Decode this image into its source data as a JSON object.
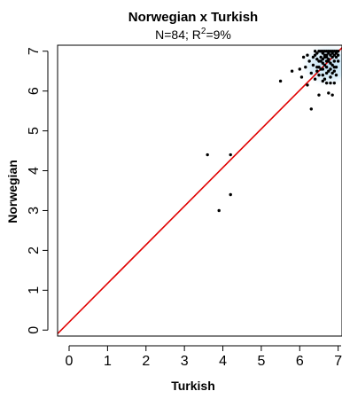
{
  "chart_data": {
    "type": "scatter",
    "title": "Norwegian x Turkish",
    "subtitle": {
      "prefix": "N=84; R",
      "sup": "2",
      "suffix": "=9%"
    },
    "xlabel": "Turkish",
    "ylabel": "Norwegian",
    "xlim": [
      -0.3,
      7.1
    ],
    "ylim": [
      -0.15,
      7.15
    ],
    "x_ticks": [
      0,
      1,
      2,
      3,
      4,
      5,
      6,
      7
    ],
    "y_ticks": [
      0,
      1,
      2,
      3,
      4,
      5,
      6,
      7
    ],
    "x_tick_labels": [
      "0",
      "1",
      "2",
      "3",
      "4",
      "5",
      "6",
      "7"
    ],
    "y_tick_labels": [
      "0",
      "1",
      "2",
      "3",
      "4",
      "5",
      "6",
      "7"
    ],
    "fit_line": {
      "intercept": 0.2,
      "slope": 0.97,
      "color": "#e00000"
    },
    "point_color": "#000000",
    "density_color": "#cfe8f6",
    "points": [
      [
        3.6,
        4.4
      ],
      [
        4.2,
        4.4
      ],
      [
        4.2,
        3.4
      ],
      [
        3.9,
        3.0
      ],
      [
        5.5,
        6.25
      ],
      [
        5.8,
        6.5
      ],
      [
        6.0,
        6.55
      ],
      [
        6.1,
        6.85
      ],
      [
        6.2,
        6.15
      ],
      [
        6.25,
        6.75
      ],
      [
        6.3,
        5.55
      ],
      [
        6.35,
        6.85
      ],
      [
        6.4,
        6.3
      ],
      [
        6.4,
        6.9
      ],
      [
        6.45,
        6.6
      ],
      [
        6.45,
        6.95
      ],
      [
        6.5,
        5.9
      ],
      [
        6.5,
        6.4
      ],
      [
        6.5,
        6.75
      ],
      [
        6.55,
        7.0
      ],
      [
        6.55,
        6.85
      ],
      [
        6.6,
        6.7
      ],
      [
        6.6,
        6.95
      ],
      [
        6.6,
        6.55
      ],
      [
        6.65,
        7.0
      ],
      [
        6.65,
        6.85
      ],
      [
        6.65,
        6.3
      ],
      [
        6.7,
        7.0
      ],
      [
        6.7,
        6.9
      ],
      [
        6.7,
        6.75
      ],
      [
        6.7,
        6.6
      ],
      [
        6.7,
        6.45
      ],
      [
        6.75,
        5.95
      ],
      [
        6.75,
        7.0
      ],
      [
        6.75,
        6.8
      ],
      [
        6.8,
        7.0
      ],
      [
        6.8,
        6.9
      ],
      [
        6.8,
        6.7
      ],
      [
        6.8,
        6.55
      ],
      [
        6.8,
        6.35
      ],
      [
        6.85,
        7.0
      ],
      [
        6.85,
        6.85
      ],
      [
        6.85,
        6.65
      ],
      [
        6.85,
        5.9
      ],
      [
        6.9,
        7.0
      ],
      [
        6.9,
        6.9
      ],
      [
        6.9,
        6.75
      ],
      [
        6.9,
        6.5
      ],
      [
        6.9,
        6.2
      ],
      [
        6.95,
        7.0
      ],
      [
        6.95,
        6.85
      ],
      [
        6.95,
        6.6
      ],
      [
        7.0,
        7.0
      ],
      [
        7.0,
        6.9
      ],
      [
        7.0,
        6.75
      ],
      [
        6.55,
        6.55
      ],
      [
        6.6,
        6.8
      ],
      [
        6.65,
        6.9
      ],
      [
        6.75,
        6.95
      ],
      [
        6.5,
        7.0
      ],
      [
        6.45,
        6.8
      ],
      [
        6.4,
        7.0
      ],
      [
        6.35,
        6.65
      ],
      [
        6.3,
        6.45
      ],
      [
        6.2,
        6.9
      ],
      [
        6.15,
        6.6
      ],
      [
        6.05,
        6.35
      ],
      [
        6.6,
        6.25
      ],
      [
        6.7,
        6.2
      ],
      [
        6.8,
        6.2
      ],
      [
        6.95,
        6.4
      ],
      [
        6.85,
        6.45
      ],
      [
        6.75,
        6.5
      ],
      [
        6.6,
        6.4
      ],
      [
        6.5,
        6.6
      ],
      [
        6.45,
        6.5
      ],
      [
        6.55,
        6.75
      ],
      [
        6.65,
        6.65
      ],
      [
        6.75,
        6.75
      ],
      [
        6.9,
        6.6
      ],
      [
        6.95,
        6.95
      ],
      [
        6.85,
        6.95
      ],
      [
        6.6,
        7.0
      ],
      [
        6.7,
        6.85
      ]
    ]
  }
}
